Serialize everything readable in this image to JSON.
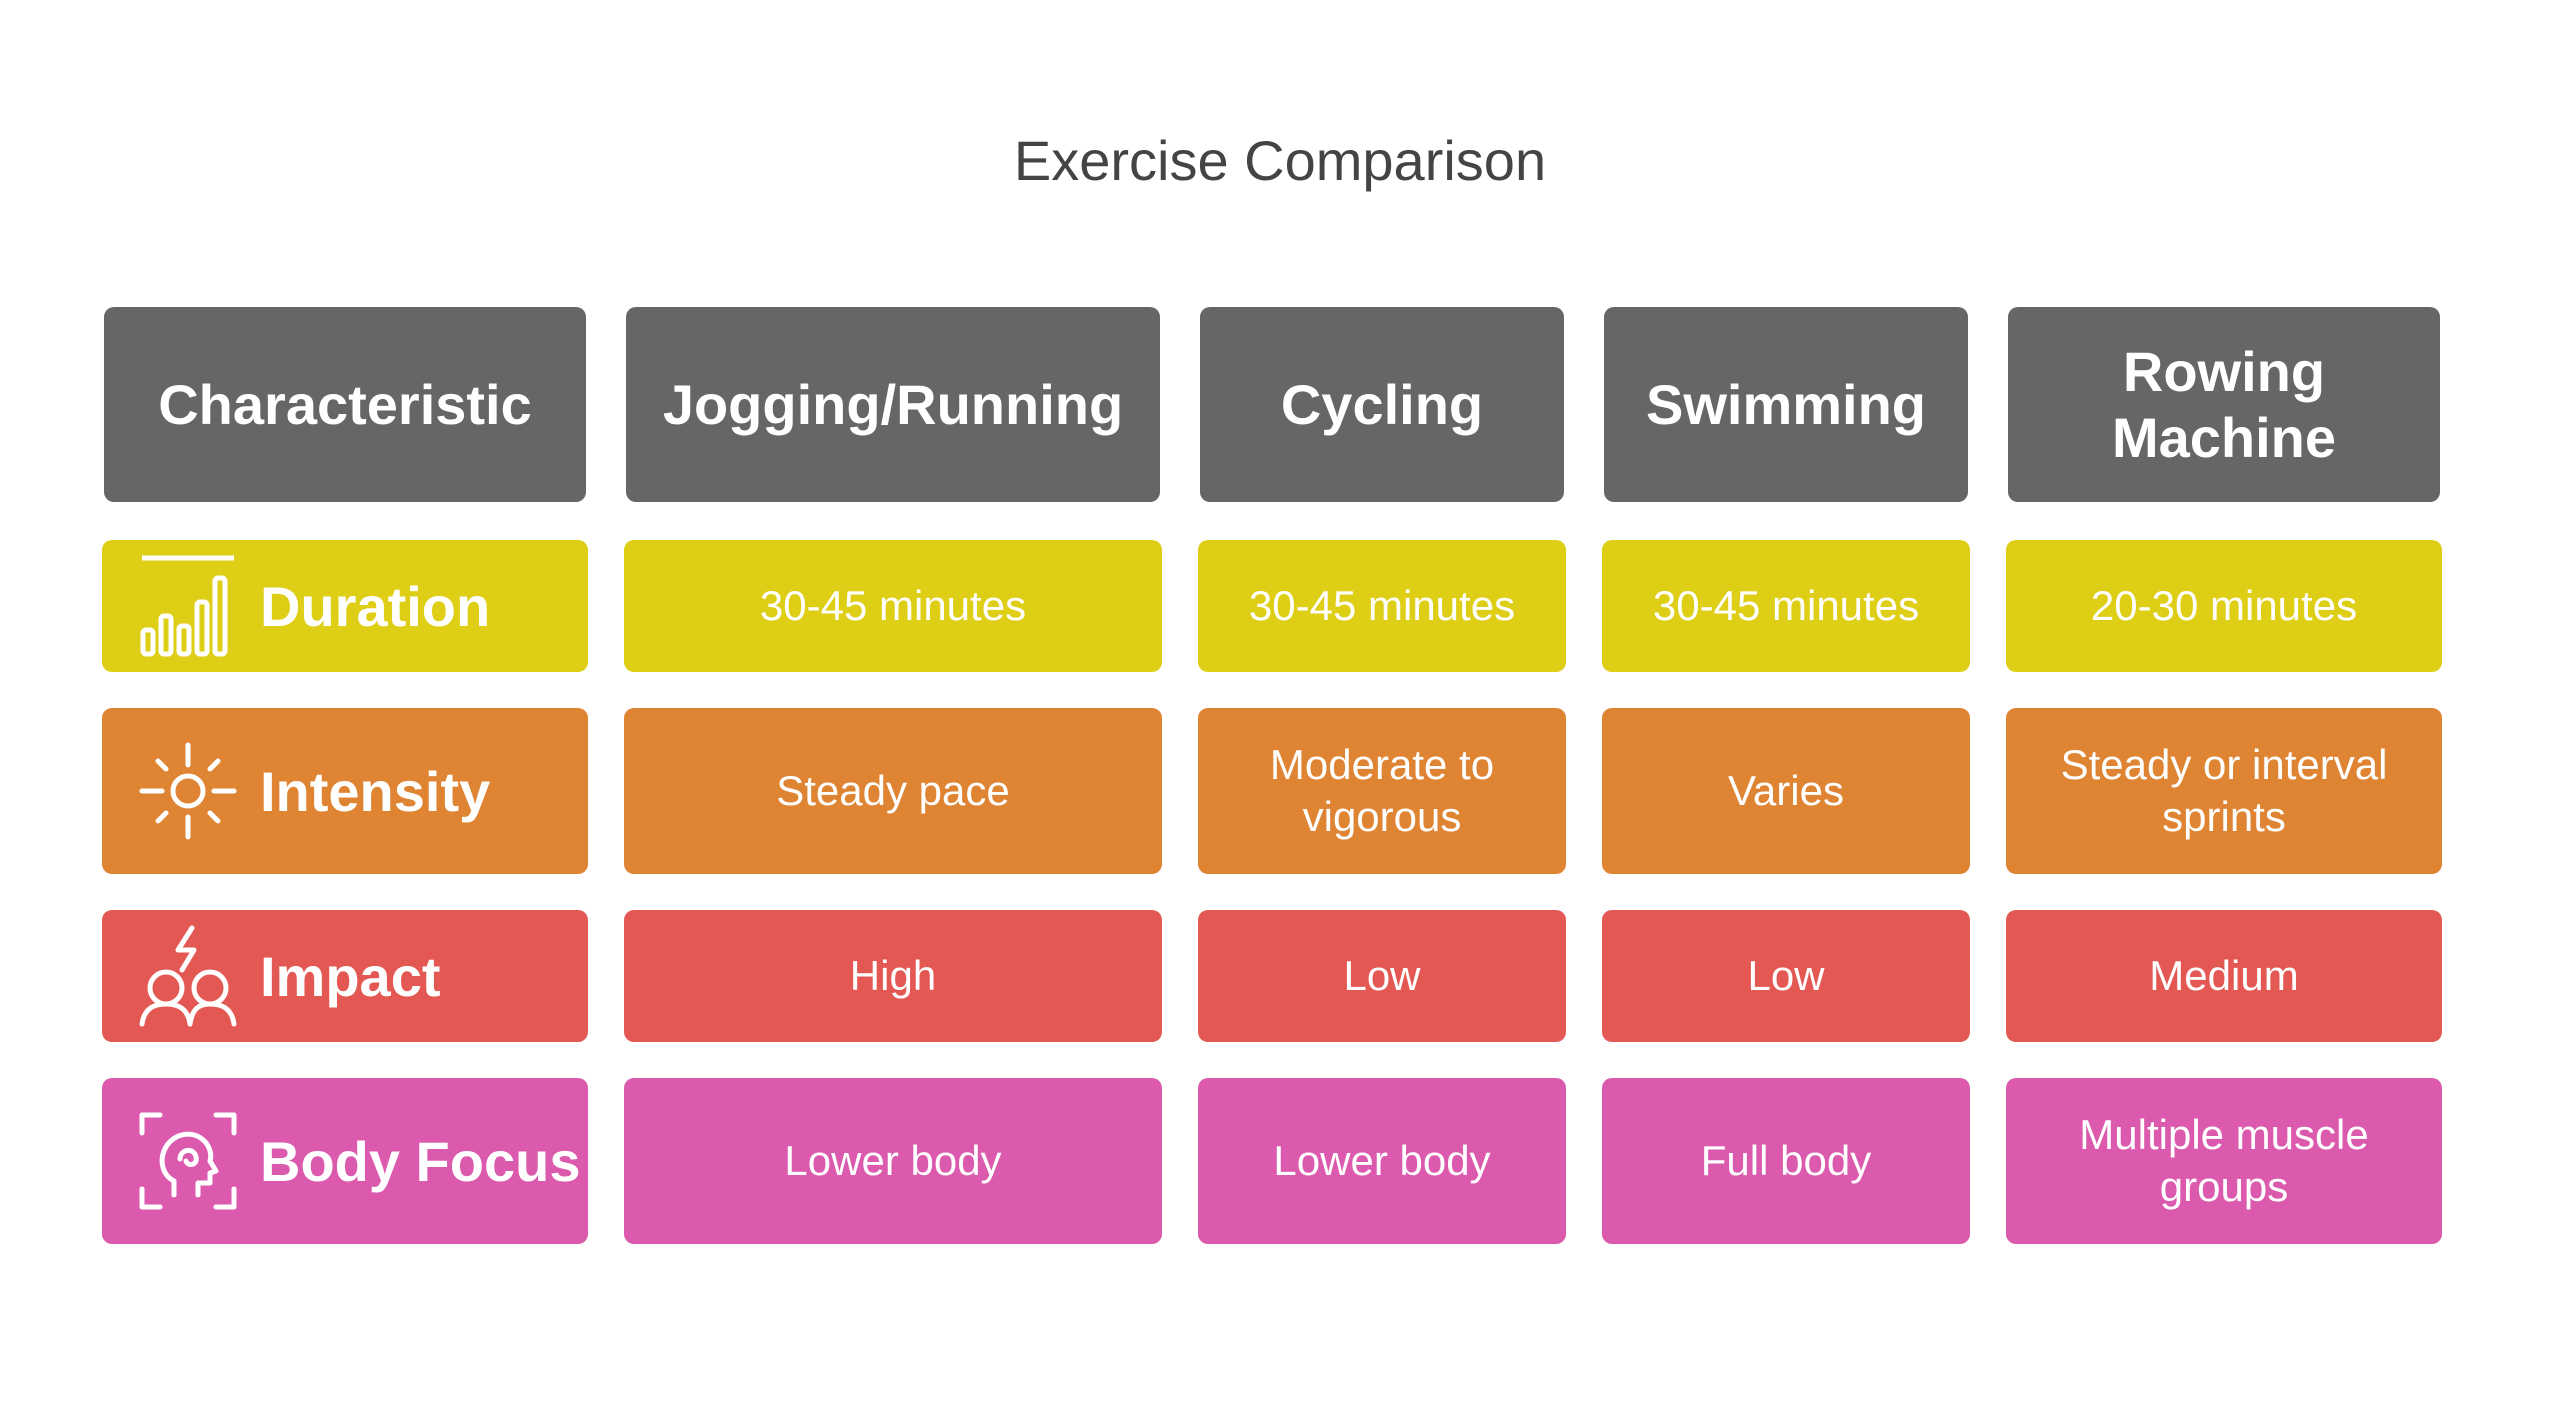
{
  "title": "Exercise Comparison",
  "colors": {
    "header": "#666666",
    "duration": "#DECE16",
    "intensity": "#DF8432",
    "impact": "#E45854",
    "body_focus": "#DB5AAE"
  },
  "headers": [
    "Characteristic",
    "Jogging/Running",
    "Cycling",
    "Swimming",
    "Rowing Machine"
  ],
  "rows": [
    {
      "label": "Duration",
      "icon": "bar-chart-icon",
      "values": [
        "30-45 minutes",
        "30-45 minutes",
        "30-45 minutes",
        "20-30 minutes"
      ]
    },
    {
      "label": "Intensity",
      "icon": "sun-icon",
      "values": [
        "Steady pace",
        "Moderate to vigorous",
        "Varies",
        "Steady or interval sprints"
      ]
    },
    {
      "label": "Impact",
      "icon": "people-lightning-icon",
      "values": [
        "High",
        "Low",
        "Low",
        "Medium"
      ]
    },
    {
      "label": "Body Focus",
      "icon": "head-scan-icon",
      "values": [
        "Lower body",
        "Lower body",
        "Full body",
        "Multiple muscle groups"
      ]
    }
  ]
}
